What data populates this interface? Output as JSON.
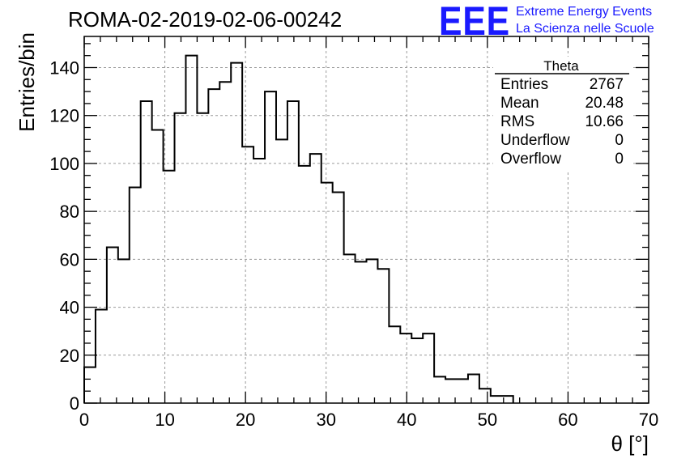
{
  "header": {
    "title": "ROMA-02-2019-02-06-00242",
    "logo": {
      "mark": "EEE",
      "line1": "Extreme Energy Events",
      "line2": "La Scienza nelle Scuole",
      "color": "#1a1aff"
    }
  },
  "stats": {
    "title": "Theta",
    "rows": [
      {
        "label": "Entries",
        "value": "2767"
      },
      {
        "label": "Mean",
        "value": "20.48"
      },
      {
        "label": "RMS",
        "value": "10.66"
      },
      {
        "label": "Underflow",
        "value": "0"
      },
      {
        "label": "Overflow",
        "value": "0"
      }
    ]
  },
  "chart_data": {
    "type": "bar",
    "style": "step-histogram",
    "xlabel": "θ [°]",
    "ylabel": "Entries/bin",
    "xlim": [
      0,
      70
    ],
    "ylim": [
      0,
      153
    ],
    "bin_width": 1.4,
    "x_ticks": [
      0,
      10,
      20,
      30,
      40,
      50,
      60,
      70
    ],
    "y_ticks": [
      0,
      20,
      40,
      60,
      80,
      100,
      120,
      140
    ],
    "grid": true,
    "bin_starts": [
      0,
      1.4,
      2.8,
      4.2,
      5.6,
      7,
      8.4,
      9.8,
      11.2,
      12.6,
      14,
      15.4,
      16.8,
      18.2,
      19.6,
      21,
      22.4,
      23.8,
      25.2,
      26.6,
      28,
      29.4,
      30.8,
      32.2,
      33.6,
      35,
      36.4,
      37.8,
      39.2,
      40.6,
      42,
      43.4,
      44.8,
      46.2,
      47.6,
      49,
      50.4,
      51.8
    ],
    "values": [
      15,
      39,
      65,
      60,
      90,
      126,
      114,
      97,
      121,
      145,
      121,
      131,
      134,
      142,
      107,
      102,
      130,
      110,
      126,
      99,
      104,
      92,
      88,
      62,
      59,
      60,
      56,
      32,
      29,
      27,
      29,
      11,
      10,
      10,
      12,
      6,
      3,
      3
    ]
  }
}
